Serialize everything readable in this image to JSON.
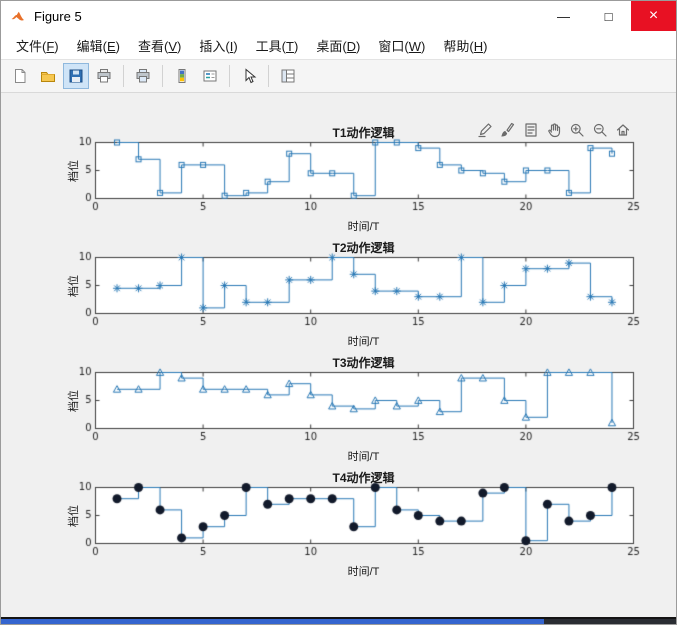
{
  "window": {
    "title": "Figure 5",
    "controls": {
      "minimize": "—",
      "maximize": "□",
      "close": "×"
    }
  },
  "menu": {
    "items": [
      {
        "id": "file",
        "label": "文件",
        "key": "F"
      },
      {
        "id": "edit",
        "label": "编辑",
        "key": "E"
      },
      {
        "id": "view",
        "label": "查看",
        "key": "V"
      },
      {
        "id": "insert",
        "label": "插入",
        "key": "I"
      },
      {
        "id": "tools",
        "label": "工具",
        "key": "T"
      },
      {
        "id": "desktop",
        "label": "桌面",
        "key": "D"
      },
      {
        "id": "window",
        "label": "窗口",
        "key": "W"
      },
      {
        "id": "help",
        "label": "帮助",
        "key": "H"
      }
    ]
  },
  "toolbar": {
    "groups": [
      [
        "new-document",
        "open-folder",
        "save",
        "print"
      ],
      [
        "print-preview"
      ],
      [
        "colorbar",
        "insert-legend"
      ],
      [
        "edit-plot-pointer"
      ],
      [
        "property-inspector"
      ]
    ],
    "active": "save"
  },
  "axes_toolbar": {
    "icons": [
      "edit",
      "brush",
      "datatips",
      "pan",
      "zoom-in",
      "zoom-out",
      "restore-view"
    ]
  },
  "colors": {
    "figure_bg": "#f0f0f0",
    "axes_bg": "#ffffff",
    "axis": "#3c3c3c",
    "tick_label": "#262626",
    "line": "#2878b5",
    "marker_dark": "#121a2b"
  },
  "chart_data": [
    {
      "type": "stairs",
      "title": "T1动作逻辑",
      "xlabel": "时间/T",
      "ylabel": "档位",
      "marker": "square-open",
      "line_color": "#2878b5",
      "x": [
        1,
        2,
        3,
        4,
        5,
        6,
        7,
        8,
        9,
        10,
        11,
        12,
        13,
        14,
        15,
        16,
        17,
        18,
        19,
        20,
        21,
        22,
        23,
        24
      ],
      "y": [
        10,
        7,
        1,
        6,
        6,
        0.5,
        1,
        3,
        8,
        4.5,
        4.5,
        0.5,
        10,
        10,
        9,
        6,
        5,
        4.5,
        3,
        5,
        5,
        1,
        9,
        8
      ],
      "xlim": [
        0,
        25
      ],
      "ylim": [
        0,
        10
      ],
      "xticks": [
        0,
        5,
        10,
        15,
        20,
        25
      ],
      "yticks": [
        0,
        5,
        10
      ]
    },
    {
      "type": "stairs",
      "title": "T2动作逻辑",
      "xlabel": "时间/T",
      "ylabel": "档位",
      "marker": "asterisk",
      "line_color": "#2878b5",
      "x": [
        1,
        2,
        3,
        4,
        5,
        6,
        7,
        8,
        9,
        10,
        11,
        12,
        13,
        14,
        15,
        16,
        17,
        18,
        19,
        20,
        21,
        22,
        23,
        24
      ],
      "y": [
        4.5,
        4.5,
        5,
        10,
        1,
        5,
        2,
        2,
        6,
        6,
        10,
        7,
        4,
        4,
        3,
        3,
        10,
        2,
        5,
        8,
        8,
        9,
        3,
        2
      ],
      "xlim": [
        0,
        25
      ],
      "ylim": [
        0,
        10
      ],
      "xticks": [
        0,
        5,
        10,
        15,
        20,
        25
      ],
      "yticks": [
        0,
        5,
        10
      ]
    },
    {
      "type": "stairs",
      "title": "T3动作逻辑",
      "xlabel": "时间/T",
      "ylabel": "档位",
      "marker": "triangle-open",
      "line_color": "#2878b5",
      "x": [
        1,
        2,
        3,
        4,
        5,
        6,
        7,
        8,
        9,
        10,
        11,
        12,
        13,
        14,
        15,
        16,
        17,
        18,
        19,
        20,
        21,
        22,
        23,
        24
      ],
      "y": [
        7,
        7,
        10,
        9,
        7,
        7,
        7,
        6,
        8,
        6,
        4,
        3.5,
        5,
        4,
        5,
        3,
        9,
        9,
        5,
        2,
        10,
        10,
        10,
        1
      ],
      "xlim": [
        0,
        25
      ],
      "ylim": [
        0,
        10
      ],
      "xticks": [
        0,
        5,
        10,
        15,
        20,
        25
      ],
      "yticks": [
        0,
        5,
        10
      ]
    },
    {
      "type": "stairs",
      "title": "T4动作逻辑",
      "xlabel": "时间/T",
      "ylabel": "档位",
      "marker": "circle-filled",
      "line_color": "#2878b5",
      "marker_color": "#121a2b",
      "x": [
        1,
        2,
        3,
        4,
        5,
        6,
        7,
        8,
        9,
        10,
        11,
        12,
        13,
        14,
        15,
        16,
        17,
        18,
        19,
        20,
        21,
        22,
        23,
        24
      ],
      "y": [
        8,
        10,
        6,
        1,
        3,
        5,
        10,
        7,
        8,
        8,
        8,
        3,
        10,
        6,
        5,
        4,
        4,
        9,
        10,
        0.5,
        7,
        4,
        5,
        10
      ],
      "xlim": [
        0,
        25
      ],
      "ylim": [
        0,
        10
      ],
      "xticks": [
        0,
        5,
        10,
        15,
        20,
        25
      ],
      "yticks": [
        0,
        5,
        10
      ]
    }
  ]
}
